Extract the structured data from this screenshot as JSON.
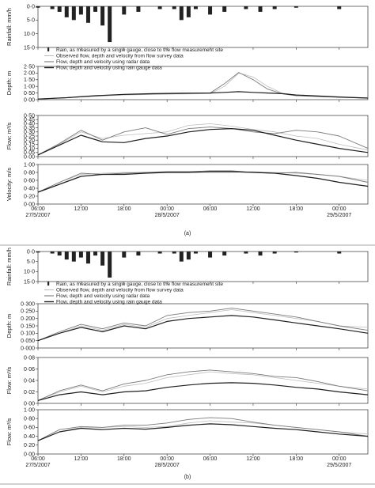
{
  "figure": {
    "panels": [
      {
        "label": "(a)",
        "legend": [
          {
            "label": "Rain, as measured by a single gauge, close to the flow measurement site",
            "kind": "rain"
          },
          {
            "label": "Observed flow, depth and velocity from flow survey data",
            "kind": "observed",
            "color": "#bbbbbb"
          },
          {
            "label": "Flow, depth and velocity using radar data",
            "kind": "radar",
            "color": "#777777"
          },
          {
            "label": "Flow, depth and velocity using rain gauge data",
            "kind": "gauge",
            "color": "#222222"
          }
        ],
        "x_ticks": [
          {
            "time": "06:00",
            "date": "27/5/2007"
          },
          {
            "time": "12:00",
            "date": ""
          },
          {
            "time": "18:00",
            "date": ""
          },
          {
            "time": "00:00",
            "date": "28/5/2007"
          },
          {
            "time": "06:00",
            "date": ""
          },
          {
            "time": "12:00",
            "date": ""
          },
          {
            "time": "18:00",
            "date": ""
          },
          {
            "time": "00:00",
            "date": "29/5/2007"
          }
        ]
      },
      {
        "label": "(b)",
        "legend": [
          {
            "label": "Rain, as measured by a single gauge, close to the flow measurement site",
            "kind": "rain"
          },
          {
            "label": "Observed flow, depth and velocity from flow survey data",
            "kind": "observed",
            "color": "#bbbbbb"
          },
          {
            "label": "Flow, depth and velocity using radar data",
            "kind": "radar",
            "color": "#777777"
          },
          {
            "label": "Flow, depth and velocity using rain gauge data",
            "kind": "gauge",
            "color": "#222222"
          }
        ],
        "x_ticks": [
          {
            "time": "06:00",
            "date": "27/5/2007"
          },
          {
            "time": "12:00",
            "date": ""
          },
          {
            "time": "18:00",
            "date": ""
          },
          {
            "time": "00:00",
            "date": "28/5/2007"
          },
          {
            "time": "06:00",
            "date": ""
          },
          {
            "time": "12:00",
            "date": ""
          },
          {
            "time": "18:00",
            "date": ""
          },
          {
            "time": "00:00",
            "date": "29/5/2007"
          }
        ]
      }
    ]
  },
  "chart_data": [
    {
      "type": "bar",
      "panel": "(a)",
      "ylabel": "Rainfall: mm/h",
      "inverted": true,
      "yticks": [
        "0·0",
        "5·0",
        "10·0",
        "15·0"
      ],
      "ylim": [
        0,
        15
      ],
      "x_hours": [
        0,
        2,
        3,
        4,
        5,
        6,
        7,
        8,
        9,
        10,
        12,
        14,
        17,
        19,
        20,
        21,
        22,
        24,
        26,
        29,
        31,
        33,
        36,
        42
      ],
      "values": [
        0.5,
        1,
        2,
        4,
        5,
        3,
        6,
        2,
        7,
        13,
        3,
        2,
        1,
        1,
        5,
        4,
        1,
        3,
        2,
        1,
        2,
        1,
        0.5,
        1
      ]
    },
    {
      "type": "line",
      "panel": "(a)",
      "ylabel": "Depth: m",
      "yticks": [
        "0·00",
        "0·50",
        "1·00",
        "1·50",
        "2·00",
        "2·50"
      ],
      "ylim": [
        0,
        2.5
      ],
      "x_hours": [
        0,
        4,
        8,
        12,
        16,
        20,
        24,
        26,
        28,
        30,
        32,
        34,
        36,
        42,
        46
      ],
      "series": [
        {
          "kind": "observed",
          "values": [
            0.05,
            0.15,
            0.25,
            0.35,
            0.4,
            0.42,
            0.45,
            1.0,
            2.0,
            1.7,
            1.0,
            0.5,
            0.35,
            0.2,
            0.15
          ]
        },
        {
          "kind": "radar",
          "values": [
            0.05,
            0.15,
            0.28,
            0.38,
            0.42,
            0.45,
            0.5,
            1.2,
            2.05,
            1.5,
            0.8,
            0.45,
            0.3,
            0.18,
            0.12
          ]
        },
        {
          "kind": "gauge",
          "values": [
            0.05,
            0.15,
            0.3,
            0.4,
            0.45,
            0.48,
            0.5,
            0.55,
            0.6,
            0.55,
            0.5,
            0.45,
            0.35,
            0.2,
            0.12
          ]
        }
      ]
    },
    {
      "type": "line",
      "panel": "(a)",
      "ylabel": "Flow: m³/s",
      "yticks": [
        "0·00",
        "0·05",
        "0·10",
        "0·15",
        "0·20",
        "0·25",
        "0·30",
        "0·35",
        "0·40",
        "0·45",
        "0·50"
      ],
      "ylim": [
        0,
        0.5
      ],
      "x_hours": [
        0,
        3,
        6,
        9,
        12,
        15,
        18,
        21,
        24,
        27,
        30,
        33,
        36,
        39,
        42,
        46
      ],
      "series": [
        {
          "kind": "observed",
          "values": [
            0.02,
            0.15,
            0.3,
            0.22,
            0.26,
            0.28,
            0.3,
            0.38,
            0.4,
            0.37,
            0.33,
            0.3,
            0.25,
            0.22,
            0.15,
            0.08
          ]
        },
        {
          "kind": "radar",
          "values": [
            0.02,
            0.16,
            0.32,
            0.2,
            0.3,
            0.35,
            0.27,
            0.34,
            0.36,
            0.34,
            0.3,
            0.28,
            0.32,
            0.3,
            0.25,
            0.1
          ]
        },
        {
          "kind": "gauge",
          "values": [
            0.02,
            0.14,
            0.26,
            0.18,
            0.17,
            0.22,
            0.25,
            0.3,
            0.33,
            0.34,
            0.32,
            0.26,
            0.2,
            0.15,
            0.1,
            0.05
          ]
        }
      ]
    },
    {
      "type": "line",
      "panel": "(a)",
      "ylabel": "Velocity: m/s",
      "yticks": [
        "0·00",
        "0·20",
        "0·40",
        "0·60",
        "0·80",
        "1·00"
      ],
      "ylim": [
        0,
        1
      ],
      "x_hours": [
        0,
        3,
        6,
        9,
        12,
        15,
        18,
        21,
        24,
        27,
        30,
        33,
        36,
        39,
        42,
        46
      ],
      "series": [
        {
          "kind": "observed",
          "values": [
            0.3,
            0.55,
            0.75,
            0.78,
            0.8,
            0.8,
            0.8,
            0.8,
            0.8,
            0.8,
            0.82,
            0.8,
            0.78,
            0.75,
            0.7,
            0.6
          ]
        },
        {
          "kind": "radar",
          "values": [
            0.3,
            0.55,
            0.78,
            0.75,
            0.78,
            0.8,
            0.82,
            0.82,
            0.84,
            0.84,
            0.8,
            0.78,
            0.8,
            0.75,
            0.7,
            0.55
          ]
        },
        {
          "kind": "gauge",
          "values": [
            0.3,
            0.5,
            0.7,
            0.75,
            0.75,
            0.78,
            0.8,
            0.8,
            0.82,
            0.82,
            0.8,
            0.78,
            0.72,
            0.65,
            0.55,
            0.45
          ]
        }
      ]
    },
    {
      "type": "bar",
      "panel": "(b)",
      "ylabel": "Rainfall: mm/h",
      "inverted": true,
      "yticks": [
        "0·0",
        "5·0",
        "10·0",
        "15·0"
      ],
      "ylim": [
        0,
        15
      ],
      "x_hours": [
        0,
        2,
        3,
        4,
        5,
        6,
        7,
        8,
        9,
        10,
        12,
        14,
        17,
        19,
        20,
        21,
        22,
        24,
        26,
        29,
        31,
        33,
        36,
        42
      ],
      "values": [
        0.5,
        1,
        2,
        4,
        5,
        3,
        6,
        2,
        7,
        13,
        3,
        2,
        1,
        1,
        5,
        4,
        1,
        3,
        2,
        1,
        2,
        1,
        0.5,
        1
      ]
    },
    {
      "type": "line",
      "panel": "(b)",
      "ylabel": "Depth: m",
      "yticks": [
        "0·000",
        "0·050",
        "0·100",
        "0·150",
        "0·200",
        "0·250",
        "0·300"
      ],
      "ylim": [
        0,
        0.3
      ],
      "x_hours": [
        0,
        3,
        6,
        9,
        12,
        15,
        18,
        21,
        24,
        27,
        30,
        33,
        36,
        39,
        42,
        46
      ],
      "series": [
        {
          "kind": "observed",
          "values": [
            0.05,
            0.1,
            0.15,
            0.12,
            0.16,
            0.14,
            0.2,
            0.22,
            0.24,
            0.26,
            0.24,
            0.22,
            0.2,
            0.18,
            0.15,
            0.14
          ]
        },
        {
          "kind": "radar",
          "values": [
            0.05,
            0.11,
            0.16,
            0.13,
            0.17,
            0.15,
            0.22,
            0.24,
            0.25,
            0.27,
            0.25,
            0.23,
            0.21,
            0.18,
            0.15,
            0.12
          ]
        },
        {
          "kind": "gauge",
          "values": [
            0.05,
            0.1,
            0.14,
            0.11,
            0.15,
            0.13,
            0.18,
            0.2,
            0.21,
            0.22,
            0.21,
            0.19,
            0.17,
            0.15,
            0.13,
            0.1
          ]
        }
      ]
    },
    {
      "type": "line",
      "panel": "(b)",
      "ylabel": "Flow: m³/s",
      "yticks": [
        "0·00",
        "0·02",
        "0·04",
        "0·06",
        "0·08"
      ],
      "ylim": [
        0,
        0.08
      ],
      "x_hours": [
        0,
        3,
        6,
        9,
        12,
        15,
        18,
        21,
        24,
        27,
        30,
        33,
        36,
        39,
        42,
        46
      ],
      "series": [
        {
          "kind": "observed",
          "values": [
            0.005,
            0.02,
            0.03,
            0.02,
            0.03,
            0.035,
            0.045,
            0.05,
            0.055,
            0.052,
            0.05,
            0.045,
            0.04,
            0.035,
            0.03,
            0.025
          ]
        },
        {
          "kind": "radar",
          "values": [
            0.005,
            0.022,
            0.032,
            0.022,
            0.034,
            0.04,
            0.05,
            0.055,
            0.058,
            0.055,
            0.052,
            0.047,
            0.045,
            0.038,
            0.03,
            0.022
          ]
        },
        {
          "kind": "gauge",
          "values": [
            0.005,
            0.015,
            0.02,
            0.015,
            0.02,
            0.022,
            0.028,
            0.032,
            0.035,
            0.036,
            0.035,
            0.032,
            0.028,
            0.025,
            0.02,
            0.015
          ]
        }
      ]
    },
    {
      "type": "line",
      "panel": "(b)",
      "ylabel": "Flow: m³/s",
      "yticks": [
        "0·00",
        "0·20",
        "0·40",
        "0·60",
        "0·80",
        "1·00"
      ],
      "ylim": [
        0,
        1
      ],
      "x_hours": [
        0,
        3,
        6,
        9,
        12,
        15,
        18,
        21,
        24,
        27,
        30,
        33,
        36,
        39,
        42,
        46
      ],
      "series": [
        {
          "kind": "observed",
          "values": [
            0.3,
            0.5,
            0.6,
            0.6,
            0.62,
            0.6,
            0.62,
            0.7,
            0.75,
            0.72,
            0.7,
            0.65,
            0.6,
            0.55,
            0.5,
            0.45
          ]
        },
        {
          "kind": "radar",
          "values": [
            0.3,
            0.55,
            0.62,
            0.6,
            0.65,
            0.65,
            0.7,
            0.78,
            0.82,
            0.8,
            0.72,
            0.65,
            0.6,
            0.55,
            0.5,
            0.4
          ]
        },
        {
          "kind": "gauge",
          "values": [
            0.3,
            0.5,
            0.58,
            0.55,
            0.58,
            0.56,
            0.6,
            0.65,
            0.68,
            0.66,
            0.62,
            0.58,
            0.55,
            0.5,
            0.45,
            0.4
          ]
        }
      ]
    }
  ]
}
